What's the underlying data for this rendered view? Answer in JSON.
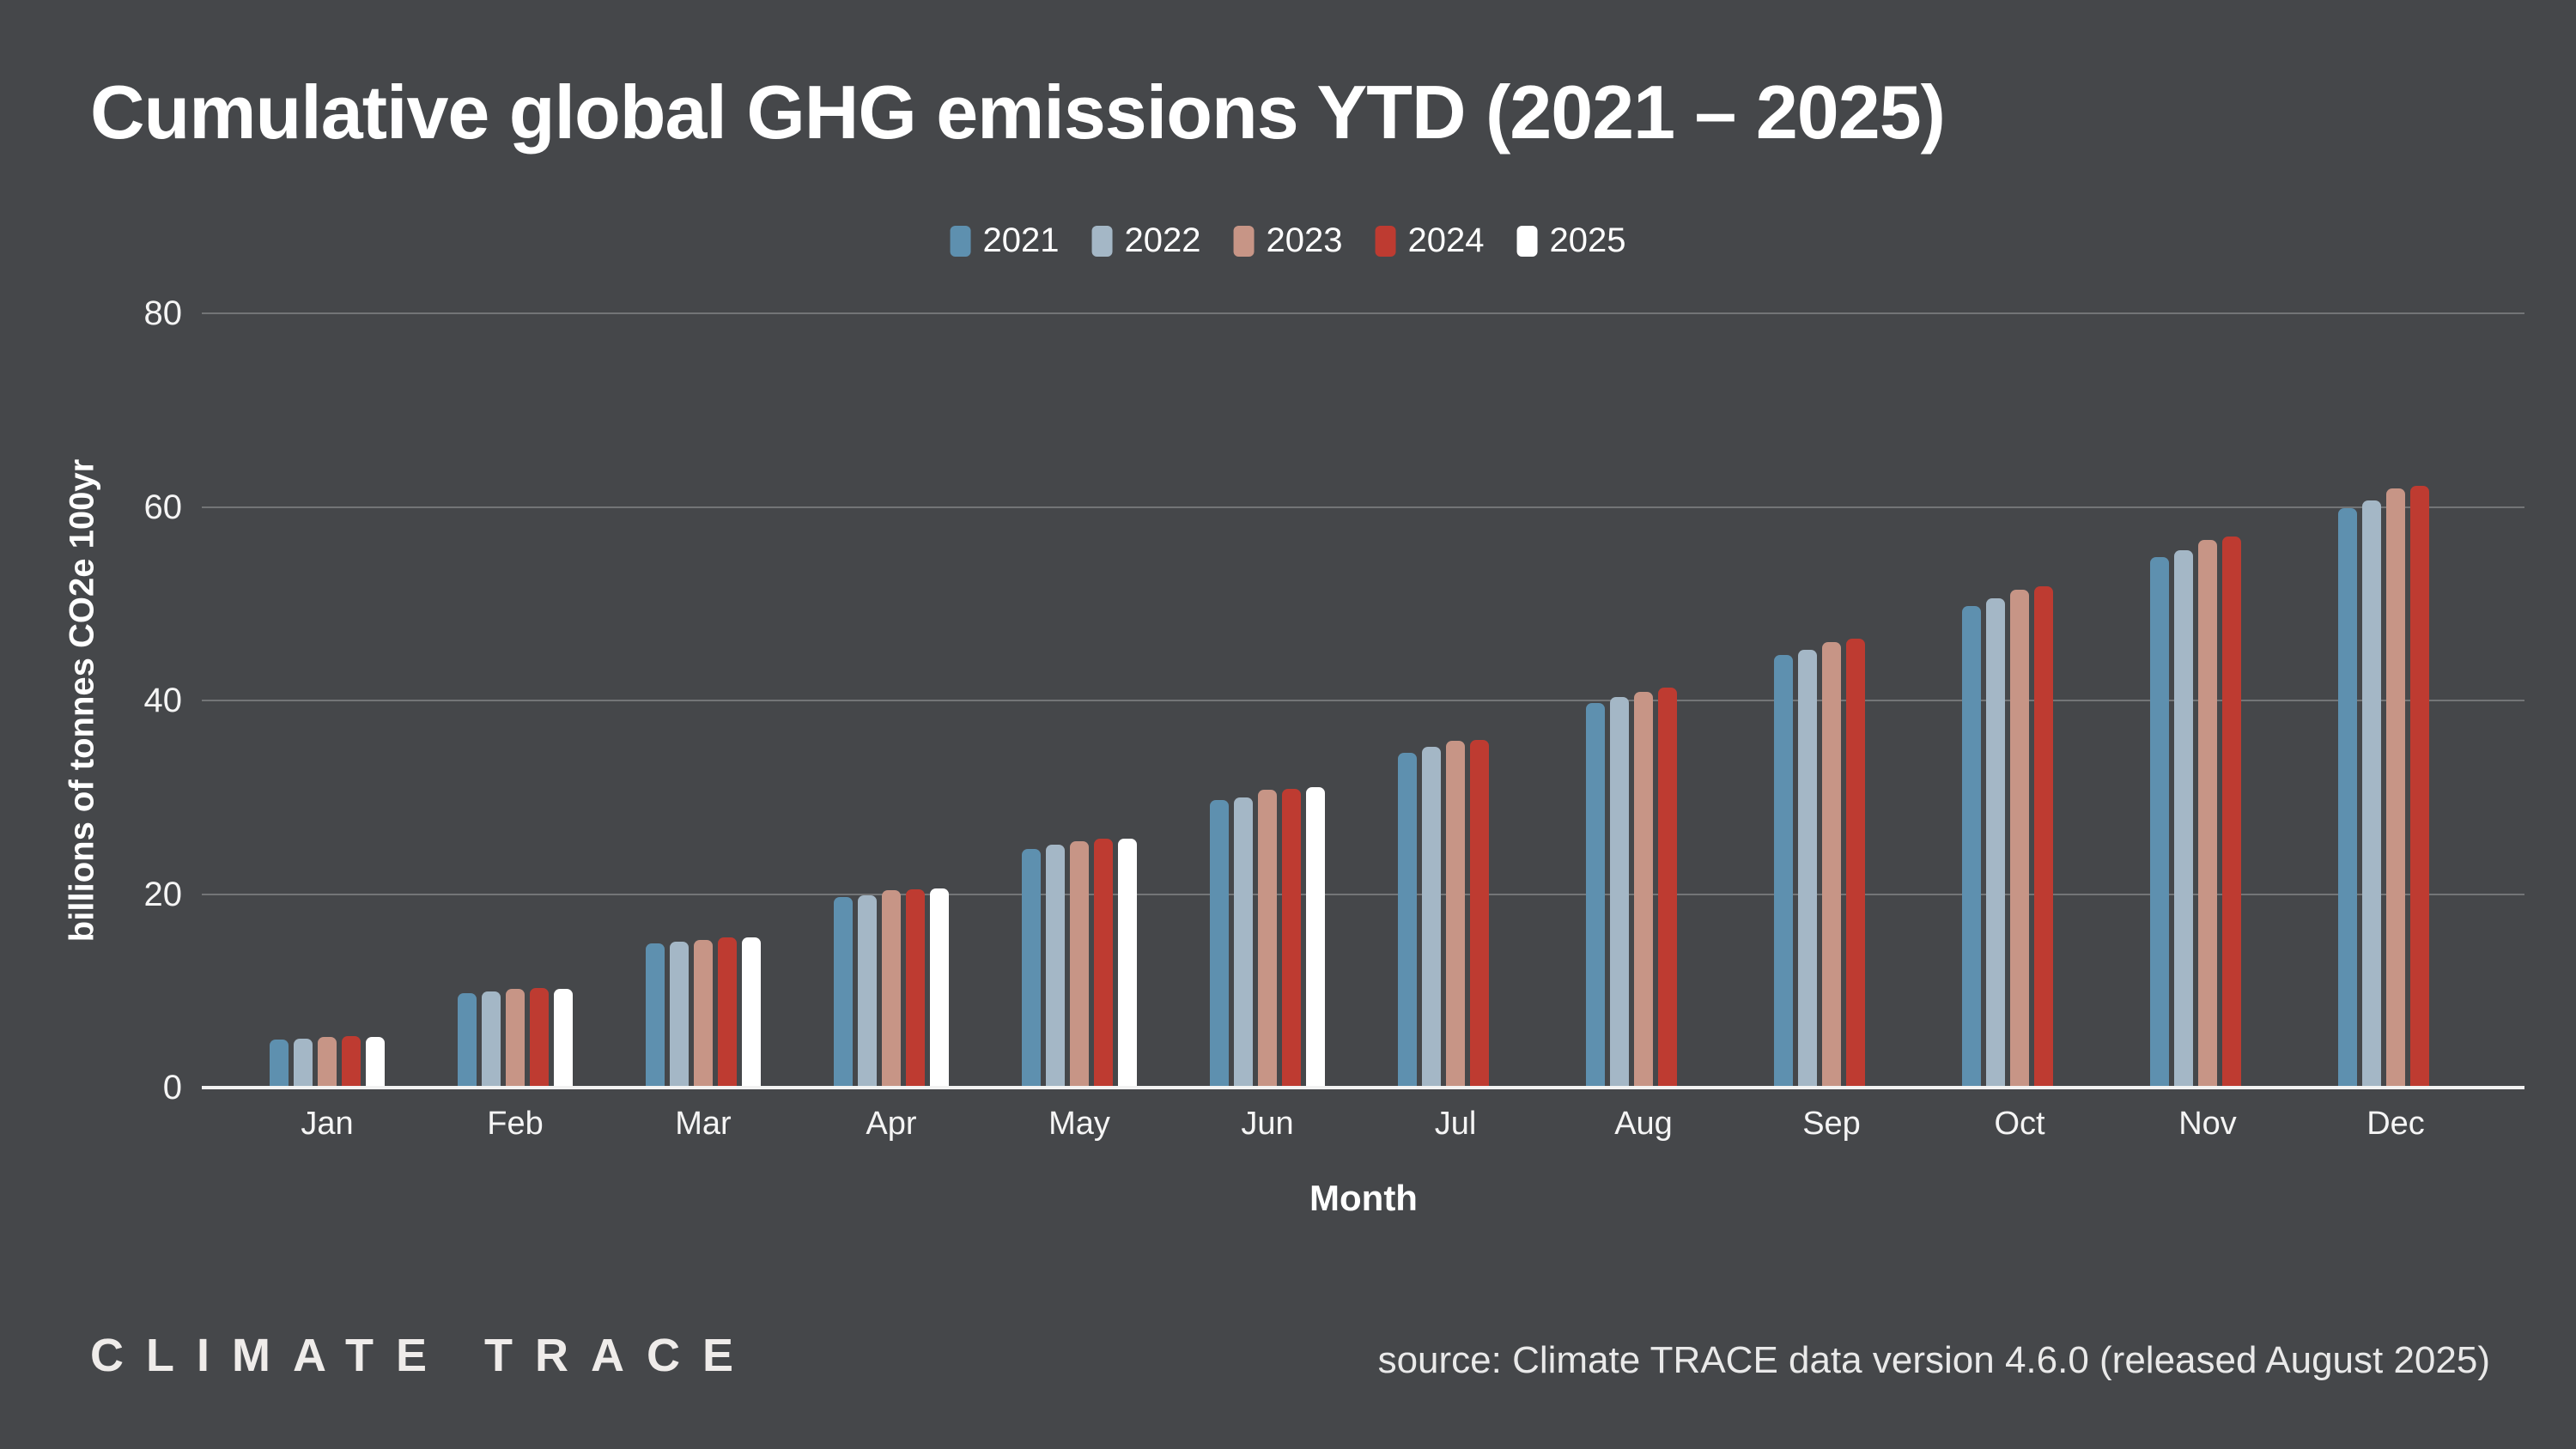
{
  "page": {
    "background_color": "#45474A"
  },
  "chart_data": {
    "type": "bar",
    "title": "Cumulative global GHG emissions YTD (2021 – 2025)",
    "xlabel": "Month",
    "ylabel": "billions of tonnes CO2e 100yr",
    "categories": [
      "Jan",
      "Feb",
      "Mar",
      "Apr",
      "May",
      "Jun",
      "Jul",
      "Aug",
      "Sep",
      "Oct",
      "Nov",
      "Dec"
    ],
    "series": [
      {
        "name": "2021",
        "color": "#5E90AF",
        "values": [
          5.0,
          9.8,
          14.9,
          19.7,
          24.7,
          29.7,
          34.6,
          39.7,
          44.7,
          49.8,
          54.8,
          59.9
        ]
      },
      {
        "name": "2022",
        "color": "#A4B7C6",
        "values": [
          5.1,
          9.9,
          15.1,
          19.9,
          25.1,
          30.0,
          35.2,
          40.4,
          45.2,
          50.6,
          55.5,
          60.7
        ]
      },
      {
        "name": "2023",
        "color": "#C79586",
        "values": [
          5.2,
          10.2,
          15.3,
          20.4,
          25.5,
          30.8,
          35.8,
          40.9,
          46.0,
          51.4,
          56.6,
          61.9
        ]
      },
      {
        "name": "2024",
        "color": "#BE3B31",
        "values": [
          5.3,
          10.3,
          15.5,
          20.5,
          25.7,
          30.9,
          35.9,
          41.3,
          46.4,
          51.8,
          56.9,
          62.2
        ]
      },
      {
        "name": "2025",
        "color": "#FFFFFF",
        "values": [
          5.2,
          10.2,
          15.5,
          20.6,
          25.7,
          31.0,
          null,
          null,
          null,
          null,
          null,
          null
        ]
      }
    ],
    "ylim": [
      0,
      80
    ],
    "yticks": [
      0,
      20,
      40,
      60,
      80
    ],
    "grid": true,
    "legend_position": "top",
    "gridline_color": "rgba(255,255,255,0.25)",
    "axis_line_color": "#F2F2F2"
  },
  "footer": {
    "logo_text": "CLIMATE TRACE",
    "source_text": "source: Climate TRACE data version 4.6.0 (released August 2025)"
  }
}
